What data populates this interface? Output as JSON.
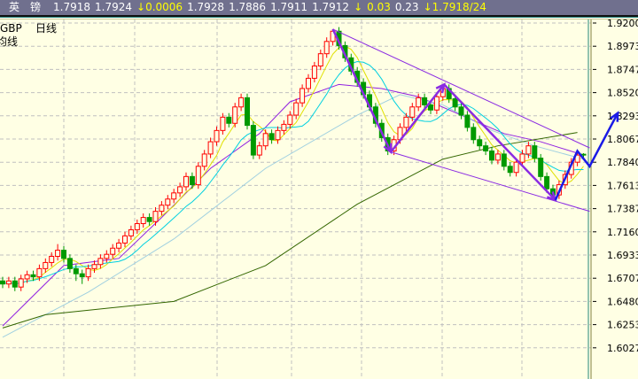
{
  "header": {
    "symbol": "英　镑",
    "fields": [
      "1.7918",
      "1.7924",
      "↓0.0006",
      "1.7928",
      "1.7886",
      "1.7911",
      "1.7912",
      "↓",
      "0.03",
      "0.23",
      "↓1.7918/24"
    ],
    "highlight": [
      false,
      false,
      true,
      false,
      false,
      false,
      false,
      true,
      true,
      false,
      true
    ]
  },
  "labels": {
    "symbol": "GBP",
    "period": "日线",
    "indicator": "均线"
  },
  "colors": {
    "background": "#ffffe4",
    "up": "#ff0000",
    "down": "#009900",
    "ma_fast": "#e0e000",
    "ma_mid": "#00d0e0",
    "ma_slow": "#9020e0",
    "ma_long1": "#a0d0e0",
    "ma_long2": "#336600",
    "trend": "#8a2be2",
    "forecast": "#1a1ae6"
  },
  "chart_data": {
    "type": "candlestick",
    "ylim": [
      1.592,
      1.925
    ],
    "yticks": [
      "1.9200",
      "1.8973",
      "1.8747",
      "1.8520",
      "1.8293",
      "1.8067",
      "1.7840",
      "1.7613",
      "1.7387",
      "1.7160",
      "1.6933",
      "1.6707",
      "1.6480",
      "1.6253",
      "1.6027"
    ],
    "grid": true,
    "ohlc": [
      [
        1.668,
        1.672,
        1.661,
        1.665
      ],
      [
        1.665,
        1.672,
        1.661,
        1.668
      ],
      [
        1.668,
        1.672,
        1.658,
        1.662
      ],
      [
        1.662,
        1.674,
        1.658,
        1.67
      ],
      [
        1.67,
        1.678,
        1.666,
        1.674
      ],
      [
        1.674,
        1.678,
        1.668,
        1.672
      ],
      [
        1.672,
        1.684,
        1.668,
        1.68
      ],
      [
        1.68,
        1.69,
        1.676,
        1.686
      ],
      [
        1.686,
        1.696,
        1.682,
        1.692
      ],
      [
        1.692,
        1.704,
        1.688,
        1.698
      ],
      [
        1.698,
        1.702,
        1.686,
        1.69
      ],
      [
        1.69,
        1.694,
        1.676,
        1.68
      ],
      [
        1.68,
        1.684,
        1.668,
        1.675
      ],
      [
        1.675,
        1.679,
        1.665,
        1.672
      ],
      [
        1.672,
        1.684,
        1.668,
        1.68
      ],
      [
        1.68,
        1.688,
        1.676,
        1.684
      ],
      [
        1.684,
        1.694,
        1.68,
        1.69
      ],
      [
        1.69,
        1.698,
        1.686,
        1.694
      ],
      [
        1.694,
        1.704,
        1.69,
        1.7
      ],
      [
        1.7,
        1.709,
        1.696,
        1.705
      ],
      [
        1.705,
        1.716,
        1.701,
        1.712
      ],
      [
        1.712,
        1.722,
        1.708,
        1.718
      ],
      [
        1.718,
        1.728,
        1.714,
        1.724
      ],
      [
        1.724,
        1.734,
        1.72,
        1.73
      ],
      [
        1.73,
        1.734,
        1.722,
        1.726
      ],
      [
        1.726,
        1.74,
        1.722,
        1.736
      ],
      [
        1.736,
        1.746,
        1.732,
        1.742
      ],
      [
        1.742,
        1.752,
        1.738,
        1.748
      ],
      [
        1.748,
        1.758,
        1.744,
        1.754
      ],
      [
        1.754,
        1.764,
        1.75,
        1.76
      ],
      [
        1.76,
        1.774,
        1.756,
        1.77
      ],
      [
        1.77,
        1.774,
        1.758,
        1.762
      ],
      [
        1.762,
        1.784,
        1.758,
        1.78
      ],
      [
        1.78,
        1.796,
        1.776,
        1.792
      ],
      [
        1.792,
        1.808,
        1.788,
        1.804
      ],
      [
        1.804,
        1.819,
        1.8,
        1.815
      ],
      [
        1.815,
        1.832,
        1.811,
        1.828
      ],
      [
        1.828,
        1.832,
        1.818,
        1.822
      ],
      [
        1.822,
        1.842,
        1.818,
        1.838
      ],
      [
        1.838,
        1.851,
        1.834,
        1.847
      ],
      [
        1.847,
        1.851,
        1.816,
        1.82
      ],
      [
        1.82,
        1.824,
        1.787,
        1.791
      ],
      [
        1.791,
        1.804,
        1.787,
        1.8
      ],
      [
        1.8,
        1.816,
        1.796,
        1.812
      ],
      [
        1.812,
        1.816,
        1.802,
        1.806
      ],
      [
        1.806,
        1.819,
        1.802,
        1.815
      ],
      [
        1.815,
        1.825,
        1.811,
        1.821
      ],
      [
        1.821,
        1.834,
        1.817,
        1.83
      ],
      [
        1.83,
        1.846,
        1.826,
        1.842
      ],
      [
        1.842,
        1.86,
        1.838,
        1.856
      ],
      [
        1.856,
        1.87,
        1.852,
        1.866
      ],
      [
        1.866,
        1.882,
        1.862,
        1.878
      ],
      [
        1.878,
        1.894,
        1.874,
        1.89
      ],
      [
        1.89,
        1.906,
        1.886,
        1.902
      ],
      [
        1.902,
        1.914,
        1.898,
        1.912
      ],
      [
        1.912,
        1.916,
        1.894,
        1.898
      ],
      [
        1.898,
        1.902,
        1.882,
        1.886
      ],
      [
        1.886,
        1.89,
        1.869,
        1.873
      ],
      [
        1.873,
        1.877,
        1.858,
        1.862
      ],
      [
        1.862,
        1.866,
        1.846,
        1.85
      ],
      [
        1.85,
        1.854,
        1.834,
        1.838
      ],
      [
        1.838,
        1.842,
        1.818,
        1.822
      ],
      [
        1.822,
        1.826,
        1.804,
        1.808
      ],
      [
        1.808,
        1.812,
        1.791,
        1.795
      ],
      [
        1.795,
        1.81,
        1.791,
        1.806
      ],
      [
        1.806,
        1.822,
        1.802,
        1.818
      ],
      [
        1.818,
        1.832,
        1.814,
        1.828
      ],
      [
        1.828,
        1.842,
        1.824,
        1.838
      ],
      [
        1.838,
        1.851,
        1.834,
        1.847
      ],
      [
        1.847,
        1.851,
        1.836,
        1.84
      ],
      [
        1.84,
        1.844,
        1.831,
        1.835
      ],
      [
        1.835,
        1.852,
        1.831,
        1.848
      ],
      [
        1.848,
        1.86,
        1.844,
        1.856
      ],
      [
        1.856,
        1.86,
        1.842,
        1.846
      ],
      [
        1.846,
        1.85,
        1.834,
        1.838
      ],
      [
        1.838,
        1.842,
        1.826,
        1.83
      ],
      [
        1.83,
        1.834,
        1.814,
        1.818
      ],
      [
        1.818,
        1.822,
        1.802,
        1.806
      ],
      [
        1.806,
        1.81,
        1.796,
        1.8
      ],
      [
        1.8,
        1.804,
        1.791,
        1.795
      ],
      [
        1.795,
        1.799,
        1.782,
        1.786
      ],
      [
        1.786,
        1.796,
        1.782,
        1.792
      ],
      [
        1.792,
        1.796,
        1.776,
        1.78
      ],
      [
        1.78,
        1.784,
        1.77,
        1.774
      ],
      [
        1.774,
        1.788,
        1.77,
        1.784
      ],
      [
        1.784,
        1.796,
        1.78,
        1.792
      ],
      [
        1.792,
        1.804,
        1.788,
        1.8
      ],
      [
        1.8,
        1.804,
        1.784,
        1.788
      ],
      [
        1.788,
        1.792,
        1.766,
        1.77
      ],
      [
        1.77,
        1.774,
        1.754,
        1.758
      ],
      [
        1.758,
        1.762,
        1.748,
        1.752
      ],
      [
        1.752,
        1.766,
        1.748,
        1.762
      ],
      [
        1.762,
        1.776,
        1.758,
        1.772
      ],
      [
        1.772,
        1.788,
        1.768,
        1.784
      ],
      [
        1.784,
        1.795,
        1.78,
        1.791
      ],
      [
        1.7918,
        1.7928,
        1.7886,
        1.7912
      ]
    ],
    "computed_ma": [
      {
        "period": 5,
        "color": "#e0e000"
      },
      {
        "period": 10,
        "color": "#00d0e0"
      }
    ],
    "ma_lines": [
      {
        "color": "#9020e0",
        "points": [
          [
            0,
            1.624
          ],
          [
            10,
            1.683
          ],
          [
            19,
            1.69
          ],
          [
            26,
            1.73
          ],
          [
            34,
            1.778
          ],
          [
            42,
            1.812
          ],
          [
            47,
            1.843
          ],
          [
            55,
            1.86
          ],
          [
            62,
            1.856
          ],
          [
            68,
            1.848
          ],
          [
            75,
            1.83
          ],
          [
            82,
            1.812
          ],
          [
            88,
            1.804
          ],
          [
            95,
            1.791
          ]
        ]
      },
      {
        "color": "#a0d0e0",
        "points": [
          [
            0,
            1.613
          ],
          [
            14,
            1.657
          ],
          [
            28,
            1.709
          ],
          [
            43,
            1.778
          ],
          [
            58,
            1.83
          ],
          [
            65,
            1.85
          ],
          [
            72,
            1.84
          ],
          [
            80,
            1.815
          ],
          [
            87,
            1.8
          ],
          [
            95,
            1.787
          ]
        ]
      },
      {
        "color": "#336600",
        "points": [
          [
            0,
            1.622
          ],
          [
            7,
            1.635
          ],
          [
            28,
            1.648
          ],
          [
            43,
            1.683
          ],
          [
            58,
            1.743
          ],
          [
            72,
            1.787
          ],
          [
            81,
            1.8
          ],
          [
            94,
            1.813
          ]
        ]
      }
    ],
    "trendlines": [
      {
        "color": "#8a2be2",
        "width": 1,
        "points": [
          [
            54,
            1.914
          ],
          [
            96,
            1.798
          ]
        ]
      },
      {
        "color": "#8a2be2",
        "width": 1,
        "points": [
          [
            63.5,
            1.794
          ],
          [
            96,
            1.736
          ]
        ]
      },
      {
        "color": "#8a2be2",
        "width": 2.5,
        "arrow": true,
        "points": [
          [
            54,
            1.914
          ],
          [
            63.5,
            1.794
          ]
        ]
      },
      {
        "color": "#8a2be2",
        "width": 2.5,
        "arrow": true,
        "points": [
          [
            63.5,
            1.794
          ],
          [
            72.2,
            1.86
          ]
        ]
      },
      {
        "color": "#8a2be2",
        "width": 2.5,
        "arrow": true,
        "points": [
          [
            72.2,
            1.86
          ],
          [
            90.4,
            1.747
          ]
        ]
      },
      {
        "color": "#1a1ae6",
        "width": 2.5,
        "arrow": true,
        "points": [
          [
            90.4,
            1.747
          ],
          [
            94,
            1.795
          ],
          [
            96,
            1.78
          ],
          [
            100.6,
            1.832
          ]
        ]
      }
    ]
  }
}
